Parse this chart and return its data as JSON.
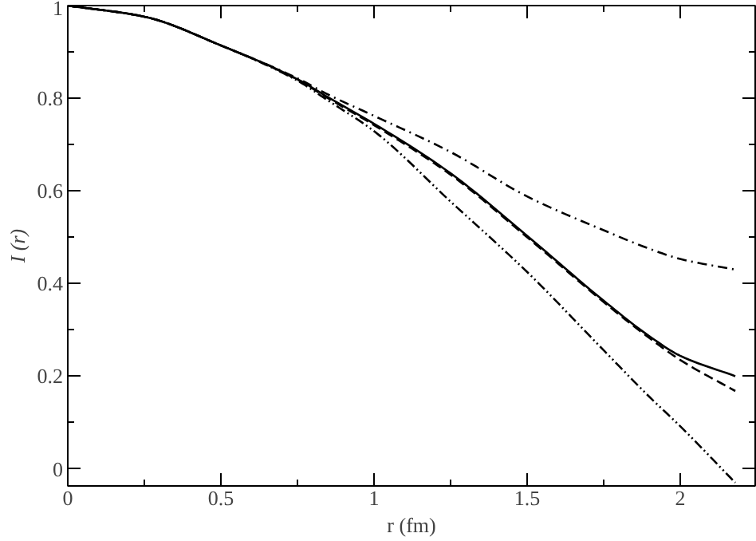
{
  "chart_data": {
    "type": "line",
    "xlabel": "r (fm)",
    "ylabel": "I (r)",
    "xlim": [
      0,
      2.245
    ],
    "ylim": [
      -0.037,
      1.0
    ],
    "xticks": [
      0,
      0.5,
      1,
      1.5,
      2
    ],
    "yticks": [
      0,
      0.2,
      0.4,
      0.6,
      0.8,
      1
    ],
    "grid": false,
    "marker": "none",
    "x": [
      0,
      0.25,
      0.5,
      0.75,
      0.85,
      1.0,
      1.25,
      1.5,
      1.75,
      1.9,
      2.0,
      2.18
    ],
    "series": [
      {
        "color": "#000000",
        "line_style": "solid",
        "values": [
          1.0,
          0.976,
          0.914,
          0.841,
          0.802,
          0.745,
          0.638,
          0.503,
          0.363,
          0.286,
          0.244,
          0.2
        ]
      },
      {
        "color": "#000000",
        "line_style": "dashed",
        "values": [
          1.0,
          0.976,
          0.914,
          0.84,
          0.8,
          0.742,
          0.635,
          0.5,
          0.36,
          0.282,
          0.235,
          0.168
        ]
      },
      {
        "color": "#000000",
        "line_style": "dashdot",
        "values": [
          1.0,
          0.976,
          0.914,
          0.843,
          0.808,
          0.762,
          0.684,
          0.588,
          0.515,
          0.475,
          0.453,
          0.43
        ]
      },
      {
        "color": "#000000",
        "line_style": "dashdotdot",
        "values": [
          1.0,
          0.976,
          0.914,
          0.838,
          0.795,
          0.729,
          0.577,
          0.425,
          0.256,
          0.155,
          0.092,
          -0.03
        ]
      }
    ]
  }
}
